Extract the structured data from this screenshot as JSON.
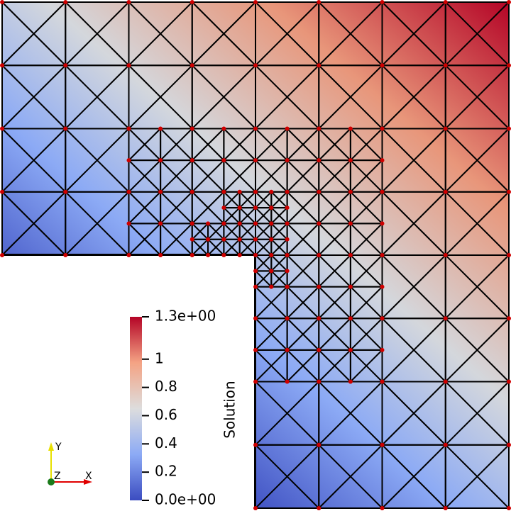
{
  "colorbar": {
    "title": "Solution",
    "range": [
      0,
      1.3
    ],
    "ticks": [
      {
        "value": 0,
        "label": "0.0e+00"
      },
      0.2,
      0.4,
      0.6,
      0.8,
      1,
      {
        "value": 1.3,
        "label": "1.3e+00"
      }
    ]
  },
  "axes_glyph": {
    "y": "Y",
    "z": "Z",
    "x": "X"
  }
}
